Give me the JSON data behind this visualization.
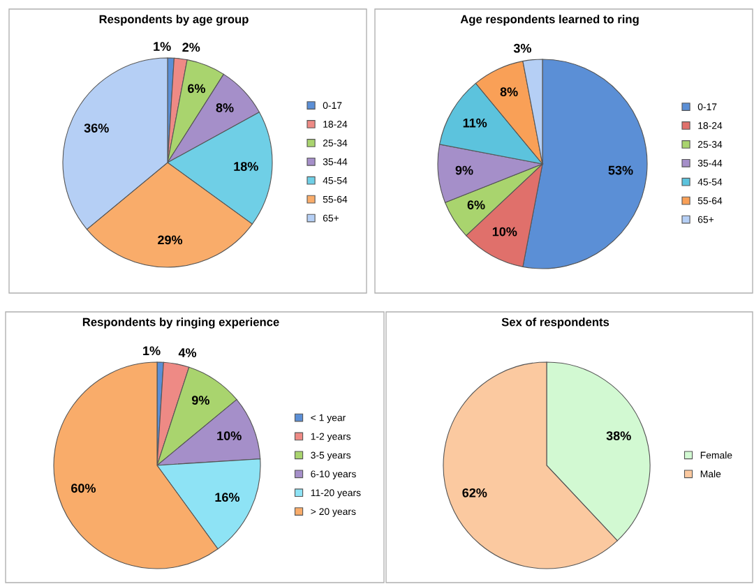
{
  "chart_data": [
    {
      "type": "pie",
      "title": "Respondents by age group",
      "categories": [
        "0-17",
        "18-24",
        "25-34",
        "35-44",
        "45-54",
        "55-64",
        "65+"
      ],
      "values": [
        1,
        2,
        6,
        8,
        18,
        29,
        36
      ],
      "value_labels": [
        "1%",
        "2%",
        "6%",
        "8%",
        "18%",
        "29%",
        "36%"
      ],
      "colors": [
        "#5b8fd6",
        "#ee8a85",
        "#a9d46e",
        "#a58fc9",
        "#6fcfe6",
        "#f9ac6a",
        "#b5cff5"
      ],
      "legend": "right"
    },
    {
      "type": "pie",
      "title": "Age respondents learned to ring",
      "categories": [
        "0-17",
        "18-24",
        "25-34",
        "35-44",
        "45-54",
        "55-64",
        "65+"
      ],
      "values": [
        53,
        10,
        6,
        9,
        11,
        8,
        3
      ],
      "value_labels": [
        "53%",
        "10%",
        "6%",
        "9%",
        "11%",
        "8%",
        "3%"
      ],
      "colors": [
        "#5b8fd6",
        "#e0706b",
        "#a9d46e",
        "#a58fc9",
        "#5cc3dd",
        "#f9a057",
        "#b5cff5"
      ],
      "legend": "right"
    },
    {
      "type": "pie",
      "title": "Respondents by ringing experience",
      "categories": [
        "< 1 year",
        "1-2 years",
        "3-5 years",
        "6-10 years",
        "11-20 years",
        "> 20 years"
      ],
      "values": [
        1,
        4,
        9,
        10,
        16,
        60
      ],
      "value_labels": [
        "1%",
        "4%",
        "9%",
        "10%",
        "16%",
        "60%"
      ],
      "colors": [
        "#5b8fd6",
        "#ee8a85",
        "#a9d46e",
        "#a58fc9",
        "#8ee3f5",
        "#f9ac6a"
      ],
      "legend": "right"
    },
    {
      "type": "pie",
      "title": "Sex of respondents",
      "categories": [
        "Female",
        "Male"
      ],
      "values": [
        38,
        62
      ],
      "value_labels": [
        "38%",
        "62%"
      ],
      "colors": [
        "#d2f9d2",
        "#fbc9a0"
      ],
      "legend": "right"
    }
  ]
}
